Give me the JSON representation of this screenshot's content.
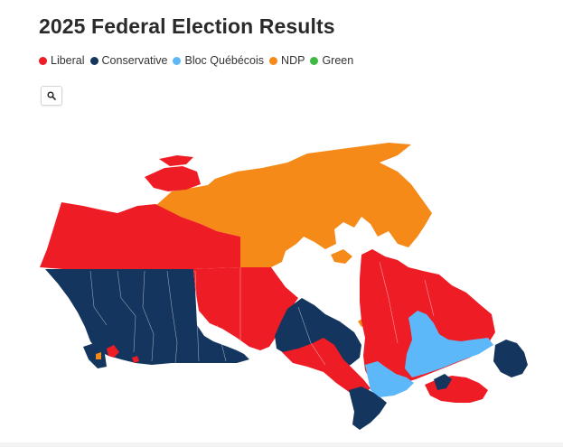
{
  "title": "2025 Federal Election Results",
  "legend": [
    {
      "label": "Liberal",
      "color": "#ee1c25"
    },
    {
      "label": "Conservative",
      "color": "#14355e"
    },
    {
      "label": "Bloc Québécois",
      "color": "#5cb8f9"
    },
    {
      "label": "NDP",
      "color": "#f58a18"
    },
    {
      "label": "Green",
      "color": "#3fb93f"
    }
  ],
  "search": {
    "icon": "search-icon"
  },
  "colors": {
    "liberal": "#ee1c25",
    "conservative": "#14355e",
    "bloc": "#5cb8f9",
    "ndp": "#f58a18",
    "green": "#3fb93f",
    "water": "#ffffff"
  }
}
